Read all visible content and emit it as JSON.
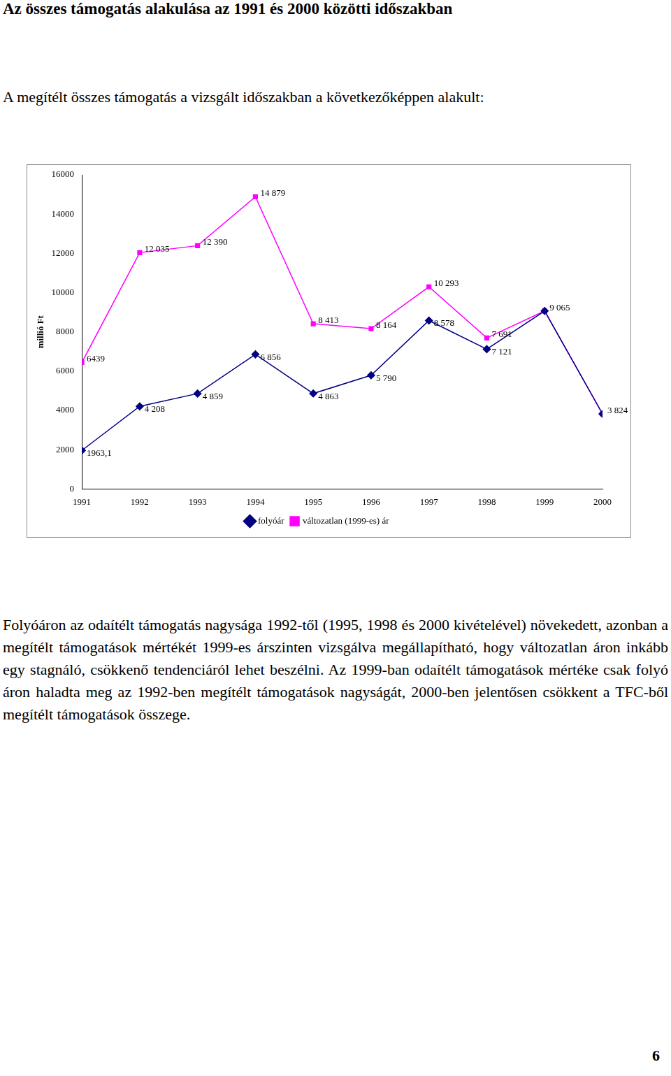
{
  "header": {
    "title": "Az összes támogatás alakulása az 1991 és 2000 közötti időszakban",
    "subtitle": "A megítélt összes támogatás a vizsgált időszakban a következőképpen alakult:"
  },
  "chart_data": {
    "type": "line",
    "y_label": "millió Ft",
    "categories": [
      "1991",
      "1992",
      "1993",
      "1994",
      "1995",
      "1996",
      "1997",
      "1998",
      "1999",
      "2000"
    ],
    "series": [
      {
        "name": "folyóár",
        "color": "#000080",
        "marker": "diamond",
        "values": [
          1963.1,
          4208,
          4859,
          6856,
          4863,
          5790,
          8578,
          7121,
          9065,
          3824
        ],
        "value_labels": [
          "1963,1",
          "4 208",
          "4 859",
          "6 856",
          "4 863",
          "5 790",
          "8 578",
          "7 121",
          null,
          null
        ]
      },
      {
        "name": "változatlan (1999-es) ár",
        "color": "#ff00ff",
        "marker": "square",
        "values": [
          6439,
          12035,
          12390,
          14879,
          8413,
          8164,
          10293,
          7691,
          9065,
          3824
        ],
        "value_labels": [
          "6439",
          "12 035",
          "12 390",
          "14 879",
          "8 413",
          "8 164",
          "10 293",
          "7 691",
          "9 065",
          "3 824"
        ]
      }
    ],
    "ylim": [
      0,
      16000
    ],
    "yticks": [
      0,
      2000,
      4000,
      6000,
      8000,
      10000,
      12000,
      14000,
      16000
    ],
    "grid": false,
    "legend": "bottom",
    "data_labels": true
  },
  "paragraph": "Folyóáron az odaítélt támogatás nagysága 1992-től (1995, 1998 és 2000 kivételével) növekedett, azonban a megítélt támogatások mértékét 1999-es árszinten vizsgálva megállapítható, hogy változatlan áron inkább egy stagnáló, csökkenő tendenciáról lehet beszélni. Az 1999-ban odaítélt támogatások mértéke csak folyó áron haladta meg az 1992-ben megítélt támogatások nagyságát, 2000-ben jelentősen csökkent a TFC-ből megítélt támogatások összege.",
  "page_number": "6"
}
